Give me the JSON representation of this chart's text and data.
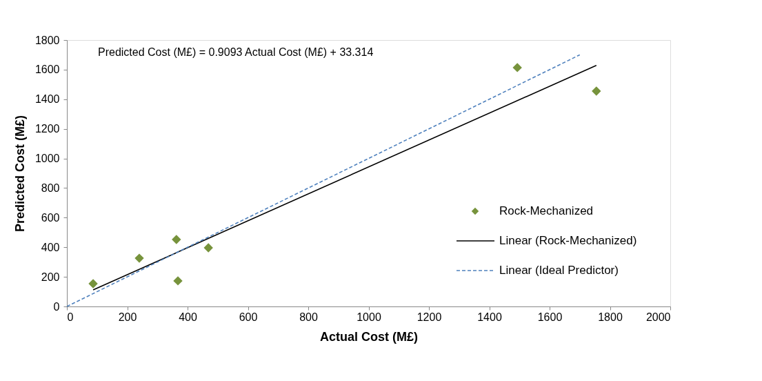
{
  "chart_data": {
    "type": "scatter",
    "xlabel": "Actual Cost (M£)",
    "ylabel": "Predicted Cost (M£)",
    "annotations": [
      "Predicted Cost (M£) = 0.9093 Actual Cost (M£) + 33.314"
    ],
    "series": [
      {
        "name": "Rock-Mechanized",
        "marker": "diamond",
        "color": "#77933c",
        "x": [
          87,
          240,
          363,
          368,
          469,
          1493,
          1755
        ],
        "values": [
          154,
          326,
          452,
          173,
          396,
          1614,
          1455
        ]
      },
      {
        "name": "Linear (Rock-Mechanized)",
        "type": "line",
        "line_style": "solid",
        "color": "#000000",
        "x": [
          87,
          1755
        ],
        "values": [
          112,
          1629
        ]
      },
      {
        "name": "Linear (Ideal Predictor)",
        "type": "line",
        "line_style": "dashed",
        "color": "#4f81bd",
        "x": [
          0,
          1700
        ],
        "values": [
          0,
          1700
        ]
      }
    ],
    "xlim": [
      0,
      2000
    ],
    "xticks": [
      0,
      200,
      400,
      600,
      800,
      1000,
      1200,
      1400,
      1600,
      1800,
      2000
    ],
    "ylim": [
      0,
      1800
    ],
    "yticks": [
      0,
      200,
      400,
      600,
      800,
      1000,
      1200,
      1400,
      1600,
      1800
    ],
    "grid": false,
    "legend": "right"
  }
}
